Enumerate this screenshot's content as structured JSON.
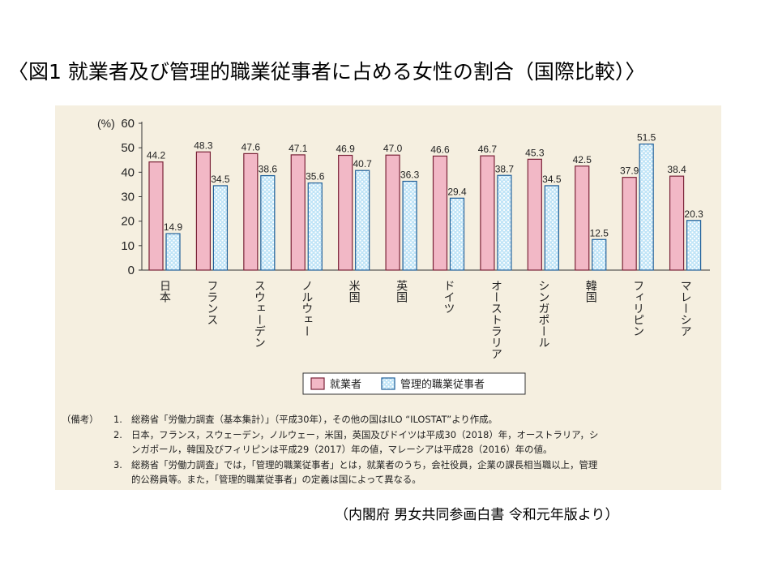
{
  "title": "〈図1 就業者及び管理的職業従事者に占める女性の割合（国際比較）〉",
  "source": "（内閣府 男女共同参画白書 令和元年版より）",
  "colors": {
    "employed_fill": "#f2b8c6",
    "employed_stroke": "#7a2238",
    "manager_fill": "#bfe4f7",
    "manager_dot": "#ffffff",
    "manager_stroke": "#1f5f99",
    "panel_bg": "#f5efe0"
  },
  "chart_data": {
    "type": "bar",
    "y_unit_label": "(%)",
    "ylim": [
      0,
      60
    ],
    "yticks": [
      "0",
      "10",
      "20",
      "30",
      "40",
      "50",
      "60"
    ],
    "categories": [
      "日本",
      "フランス",
      "スウェーデン",
      "ノルウェー",
      "米国",
      "英国",
      "ドイツ",
      "オーストラリア",
      "シンガポール",
      "韓国",
      "フィリピン",
      "マレーシア"
    ],
    "series": [
      {
        "name": "就業者",
        "values": [
          44.2,
          48.3,
          47.6,
          47.1,
          46.9,
          47.0,
          46.6,
          46.7,
          45.3,
          42.5,
          37.9,
          38.4
        ],
        "labels": [
          "44.2",
          "48.3",
          "47.6",
          "47.1",
          "46.9",
          "47.0",
          "46.6",
          "46.7",
          "45.3",
          "42.5",
          "37.9",
          "38.4"
        ]
      },
      {
        "name": "管理的職業従事者",
        "values": [
          14.9,
          34.5,
          38.6,
          35.6,
          40.7,
          36.3,
          29.4,
          38.7,
          34.5,
          12.5,
          51.5,
          20.3
        ],
        "labels": [
          "14.9",
          "34.5",
          "38.6",
          "35.6",
          "40.7",
          "36.3",
          "29.4",
          "38.7",
          "34.5",
          "12.5",
          "51.5",
          "20.3"
        ]
      }
    ],
    "legend_position": "bottom",
    "grid": false
  },
  "notes": {
    "prefix": "（備考）",
    "items": [
      {
        "num": "1.",
        "lines": [
          "総務省「労働力調査（基本集計）」（平成30年），その他の国はILO “ILOSTAT”より作成。"
        ]
      },
      {
        "num": "2.",
        "lines": [
          "日本，フランス，スウェーデン，ノルウェー，米国，英国及びドイツは平成30（2018）年，オーストラリア，シ",
          "ンガポール，韓国及びフィリピンは平成29（2017）年の値，マレーシアは平成28（2016）年の値。"
        ]
      },
      {
        "num": "3.",
        "lines": [
          "総務省「労働力調査」では，「管理的職業従事者」とは，就業者のうち，会社役員，企業の課長相当職以上，管理",
          "的公務員等。また，「管理的職業従事者」の定義は国によって異なる。"
        ]
      }
    ]
  }
}
